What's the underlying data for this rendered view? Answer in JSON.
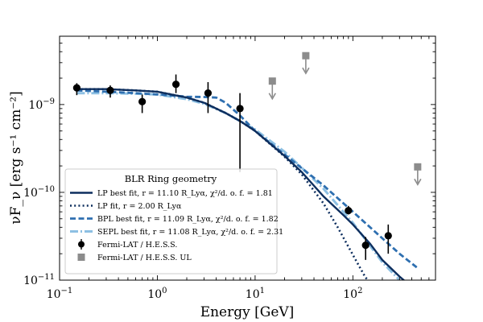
{
  "chart_data": {
    "type": "line",
    "xscale": "log",
    "yscale": "log",
    "xlim": [
      0.1,
      700
    ],
    "ylim": [
      1e-11,
      6e-09
    ],
    "xlabel": "Energy [GeV]",
    "ylabel": "νF_ν [erg s⁻¹ cm⁻²]",
    "x_ticks": [
      {
        "value": 0.1,
        "base": "10",
        "exp": "−1"
      },
      {
        "value": 1,
        "base": "10",
        "exp": "0"
      },
      {
        "value": 10,
        "base": "10",
        "exp": "1"
      },
      {
        "value": 100,
        "base": "10",
        "exp": "2"
      }
    ],
    "y_ticks": [
      {
        "value": 1e-11,
        "base": "10",
        "exp": "−11"
      },
      {
        "value": 1e-10,
        "base": "10",
        "exp": "−10"
      },
      {
        "value": 1e-09,
        "base": "10",
        "exp": "−9"
      }
    ],
    "legend": {
      "title": "BLR Ring geometry",
      "entries": [
        {
          "key": "lp",
          "label": "LP best fit, r = 11.10 R_Lyα, χ²/d. o. f. = 1.81"
        },
        {
          "key": "lp2",
          "label": "LP fit, r = 2.00 R_Lyα"
        },
        {
          "key": "bpl",
          "label": "BPL best fit, r = 11.09 R_Lyα, χ²/d. o. f. = 1.82"
        },
        {
          "key": "sepl",
          "label": "SEPL best fit, r = 11.08 R_Lyα, χ²/d. o. f. = 2.31"
        },
        {
          "key": "data",
          "label": "Fermi-LAT / H.E.S.S."
        },
        {
          "key": "ul",
          "label": "Fermi-LAT / H.E.S.S. UL"
        }
      ]
    },
    "series": [
      {
        "key": "lp",
        "name": "LP best fit",
        "color": "#0d2e5e",
        "dash": "solid",
        "x": [
          0.15,
          0.3,
          0.6,
          1,
          2,
          3,
          5,
          7,
          10,
          20,
          30,
          50,
          80,
          100,
          150,
          200,
          300,
          350
        ],
        "y": [
          1.5e-09,
          1.5e-09,
          1.45e-09,
          1.4e-09,
          1.2e-09,
          1.05e-09,
          8e-10,
          6.5e-10,
          5e-10,
          2.6e-10,
          1.7e-10,
          9e-11,
          5.5e-11,
          4.3e-11,
          2.6e-11,
          1.7e-11,
          1.1e-11,
          9.5e-12
        ]
      },
      {
        "key": "lp2",
        "name": "LP fit",
        "color": "#0d2e5e",
        "dash": "dotted",
        "x": [
          0.15,
          0.3,
          0.6,
          1,
          2,
          3,
          5,
          7,
          10,
          20,
          30,
          50,
          70,
          90,
          110,
          130,
          150
        ],
        "y": [
          1.5e-09,
          1.5e-09,
          1.45e-09,
          1.4e-09,
          1.2e-09,
          1.05e-09,
          8e-10,
          6.5e-10,
          5e-10,
          2.55e-10,
          1.6e-10,
          7.5e-11,
          4e-11,
          2.4e-11,
          1.6e-11,
          1.15e-11,
          9e-12
        ]
      },
      {
        "key": "bpl",
        "name": "BPL best fit",
        "color": "#2e6fb0",
        "dash": "dashed",
        "x": [
          0.15,
          0.3,
          0.6,
          1,
          2,
          3,
          4,
          5,
          7,
          10,
          20,
          50,
          100,
          200,
          300,
          450
        ],
        "y": [
          1.45e-09,
          1.4e-09,
          1.35e-09,
          1.3e-09,
          1.23e-09,
          1.22e-09,
          1.2e-09,
          1.05e-09,
          7.5e-10,
          5e-10,
          2.7e-10,
          1.2e-10,
          6e-11,
          3e-11,
          2e-11,
          1.4e-11
        ]
      },
      {
        "key": "sepl",
        "name": "SEPL best fit",
        "color": "#8dc0e3",
        "dash": "dashdot",
        "x": [
          0.15,
          0.3,
          0.6,
          1,
          2,
          3,
          5,
          7,
          10,
          20,
          30,
          50,
          100,
          200,
          300,
          350
        ],
        "y": [
          1.35e-09,
          1.35e-09,
          1.33e-09,
          1.3e-09,
          1.15e-09,
          1.02e-09,
          8e-10,
          6.5e-10,
          5.2e-10,
          2.9e-10,
          1.9e-10,
          1.1e-10,
          4.5e-11,
          1.6e-11,
          1e-11,
          8.5e-12
        ]
      }
    ],
    "data_points": [
      {
        "x": 0.15,
        "y": 1.55e-09,
        "ylo": 1.28e-09,
        "yhi": 1.75e-09
      },
      {
        "x": 0.33,
        "y": 1.45e-09,
        "ylo": 1.2e-09,
        "yhi": 1.65e-09
      },
      {
        "x": 0.7,
        "y": 1.08e-09,
        "ylo": 8e-10,
        "yhi": 1.3e-09
      },
      {
        "x": 1.55,
        "y": 1.7e-09,
        "ylo": 1.35e-09,
        "yhi": 2.2e-09
      },
      {
        "x": 3.3,
        "y": 1.35e-09,
        "ylo": 8e-10,
        "yhi": 1.8e-09
      },
      {
        "x": 7.0,
        "y": 9e-10,
        "ylo": 1.7e-10,
        "yhi": 1.35e-09
      },
      {
        "x": 90,
        "y": 6.2e-11,
        "ylo": 5.6e-11,
        "yhi": 7e-11
      },
      {
        "x": 135,
        "y": 2.5e-11,
        "ylo": 1.7e-11,
        "yhi": 3.1e-11
      },
      {
        "x": 230,
        "y": 3.2e-11,
        "ylo": 2e-11,
        "yhi": 4.3e-11
      }
    ],
    "upper_limits": [
      {
        "x": 15,
        "y": 1.85e-09
      },
      {
        "x": 33,
        "y": 3.6e-09
      },
      {
        "x": 460,
        "y": 1.95e-10
      }
    ],
    "colors": {
      "data": "#000000",
      "ul": "#8c8c8c"
    }
  }
}
